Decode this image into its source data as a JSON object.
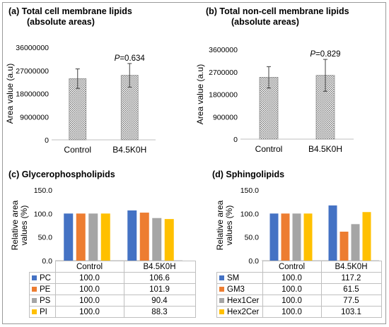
{
  "colors": {
    "series": [
      "#4472c4",
      "#ed7d31",
      "#a5a5a5",
      "#ffc000"
    ],
    "bar_fill": "#d9d9d9",
    "axis": "#bfbfbf"
  },
  "chart_data": [
    {
      "panel": "a",
      "type": "bar",
      "title": "(a) Total cell membrane lipids",
      "subtitle": "(absolute areas)",
      "ylabel": "Area value (a.u)",
      "categories": [
        "Control",
        "B4.5K0H"
      ],
      "values": [
        23800000,
        25100000
      ],
      "error": [
        3800000,
        4600000
      ],
      "ylim": [
        0,
        36000000
      ],
      "yticks": [
        "0",
        "9000000",
        "18000000",
        "27000000",
        "36000000"
      ],
      "annotation": "P=0.634",
      "grid": false
    },
    {
      "panel": "b",
      "type": "bar",
      "title": "(b) Total non-cell membrane lipids",
      "subtitle": "(absolute areas)",
      "ylabel": "Area value (a.u)",
      "categories": [
        "Control",
        "B4.5K0H"
      ],
      "values": [
        2480000,
        2560000
      ],
      "error": [
        430000,
        640000
      ],
      "ylim": [
        0,
        3600000
      ],
      "yticks": [
        "0",
        "900000",
        "1800000",
        "2700000",
        "3600000"
      ],
      "annotation": "P=0.829",
      "grid": false
    },
    {
      "panel": "c",
      "type": "bar",
      "title": "(c) Glycerophospholipids",
      "ylabel": "Relative area values (%)",
      "categories": [
        "Control",
        "B4.5K0H"
      ],
      "series": [
        {
          "name": "PC",
          "values": [
            100.0,
            106.6
          ]
        },
        {
          "name": "PE",
          "values": [
            100.0,
            101.9
          ]
        },
        {
          "name": "PS",
          "values": [
            100.0,
            90.4
          ]
        },
        {
          "name": "PI",
          "values": [
            100.0,
            88.3
          ]
        }
      ],
      "ylim": [
        0,
        150
      ],
      "yticks": [
        "0.0",
        "50.0",
        "100.0",
        "150.0"
      ],
      "data_table": true,
      "grid": false
    },
    {
      "panel": "d",
      "type": "bar",
      "title": "(d) Sphingolipids",
      "ylabel": "Relative area values (%)",
      "categories": [
        "Control",
        "B4.5K0H"
      ],
      "series": [
        {
          "name": "SM",
          "values": [
            100.0,
            117.2
          ]
        },
        {
          "name": "GM3",
          "values": [
            100.0,
            61.5
          ]
        },
        {
          "name": "Hex1Cer",
          "values": [
            100.0,
            77.5
          ]
        },
        {
          "name": "Hex2Cer",
          "values": [
            100.0,
            103.1
          ]
        }
      ],
      "ylim": [
        0,
        150
      ],
      "yticks": [
        "0.0",
        "50.0",
        "100.0",
        "150.0"
      ],
      "data_table": true,
      "grid": false
    }
  ]
}
